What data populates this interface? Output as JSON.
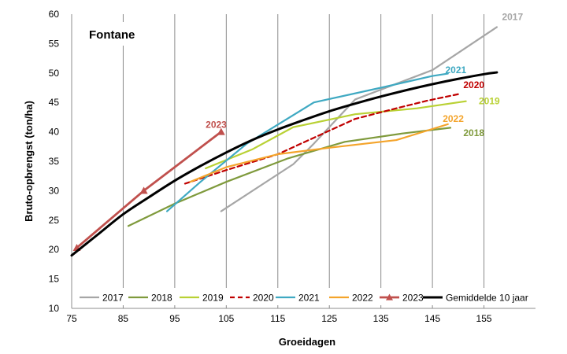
{
  "chart_data": {
    "type": "line",
    "title": "Fontane",
    "xlabel": "Groeidagen",
    "ylabel": "Bruto-opbrengst (ton/ha)",
    "xlim": [
      75,
      165
    ],
    "ylim": [
      10,
      60
    ],
    "xticks": [
      75,
      85,
      95,
      105,
      115,
      125,
      135,
      145,
      155
    ],
    "yticks": [
      10,
      15,
      20,
      25,
      30,
      35,
      40,
      45,
      50,
      55,
      60
    ],
    "grid": "vertical",
    "legend": "bottom",
    "series": [
      {
        "name": "2017",
        "color": "#a6a6a6",
        "style": "solid",
        "width": 2.2,
        "label": "2017",
        "label_at": [
          158.5,
          59.5
        ],
        "points": [
          [
            104,
            26.5
          ],
          [
            118,
            34.5
          ],
          [
            122,
            38
          ],
          [
            130,
            45.5
          ],
          [
            145,
            50.5
          ],
          [
            157.5,
            57.8
          ]
        ]
      },
      {
        "name": "2018",
        "color": "#7f9a3c",
        "style": "solid",
        "width": 2.2,
        "label": "2018",
        "label_at": [
          151,
          39.8
        ],
        "points": [
          [
            86,
            24
          ],
          [
            95,
            27.8
          ],
          [
            105,
            31.5
          ],
          [
            117,
            35.5
          ],
          [
            128,
            38.3
          ],
          [
            139,
            39.7
          ],
          [
            148.5,
            40.7
          ]
        ]
      },
      {
        "name": "2019",
        "color": "#b9d134",
        "style": "solid",
        "width": 2.2,
        "label": "2019",
        "label_at": [
          154,
          45.2
        ],
        "points": [
          [
            101,
            33.8
          ],
          [
            110,
            37
          ],
          [
            118,
            40.8
          ],
          [
            130,
            43
          ],
          [
            142,
            44
          ],
          [
            151.5,
            45.2
          ]
        ]
      },
      {
        "name": "2020",
        "color": "#c00000",
        "style": "dashed",
        "width": 2.2,
        "label": "2020",
        "label_at": [
          151,
          48
        ],
        "points": [
          [
            97,
            31.2
          ],
          [
            105,
            33.5
          ],
          [
            115,
            36.2
          ],
          [
            122,
            39
          ],
          [
            130,
            42.2
          ],
          [
            138,
            44
          ],
          [
            144,
            45.3
          ],
          [
            150,
            46.4
          ]
        ]
      },
      {
        "name": "2021",
        "color": "#3fa9c2",
        "style": "solid",
        "width": 2.2,
        "label": "2021",
        "label_at": [
          147.5,
          50.5
        ],
        "points": [
          [
            93.5,
            26.5
          ],
          [
            100,
            31.5
          ],
          [
            109,
            38
          ],
          [
            122,
            45
          ],
          [
            135,
            47.5
          ],
          [
            145,
            49.5
          ],
          [
            148,
            49.9
          ]
        ]
      },
      {
        "name": "2022",
        "color": "#f4a42b",
        "style": "solid",
        "width": 2.2,
        "label": "2022",
        "label_at": [
          147,
          42.2
        ],
        "points": [
          [
            98,
            31.5
          ],
          [
            105,
            34
          ],
          [
            115,
            36.2
          ],
          [
            125,
            37.3
          ],
          [
            138,
            38.6
          ],
          [
            148,
            41.3
          ]
        ]
      },
      {
        "name": "2023",
        "color": "#c0504d",
        "style": "solid",
        "width": 2.8,
        "marker": "triangle",
        "label": "2023",
        "label_at": [
          101,
          41.2
        ],
        "points": [
          [
            76,
            20.3
          ],
          [
            89,
            30
          ],
          [
            104,
            40
          ]
        ]
      },
      {
        "name": "Gemiddelde  10 jaar",
        "color": "#000000",
        "style": "solid",
        "width": 3,
        "points": [
          [
            75,
            19
          ],
          [
            80,
            22.5
          ],
          [
            85,
            26
          ],
          [
            90,
            28.9
          ],
          [
            95,
            31.7
          ],
          [
            100,
            34.2
          ],
          [
            105,
            36.5
          ],
          [
            110,
            38.6
          ],
          [
            115,
            40.4
          ],
          [
            120,
            42
          ],
          [
            125,
            43.5
          ],
          [
            130,
            44.8
          ],
          [
            135,
            46
          ],
          [
            140,
            47.1
          ],
          [
            145,
            48.1
          ],
          [
            150,
            49
          ],
          [
            155,
            49.8
          ],
          [
            157.5,
            50.1
          ]
        ]
      }
    ]
  }
}
